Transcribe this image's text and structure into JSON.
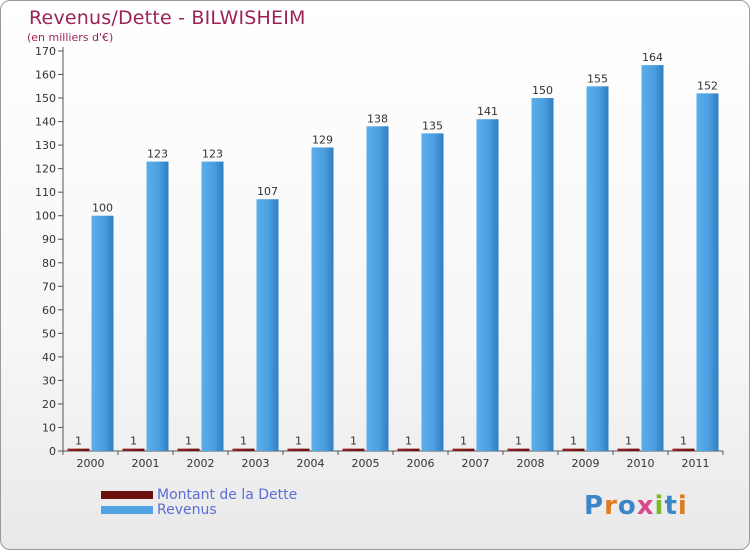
{
  "title": "Revenus/Dette - BILWISHEIM",
  "subtitle": "(en milliers d'€)",
  "legend": {
    "debt_label": "Montant de la Dette",
    "revenue_label": "Revenus"
  },
  "logo": {
    "text": "Proxiti"
  },
  "colors": {
    "title": "#9b2257",
    "revenue_bar": "#4fa3e3",
    "debt_bar": "#8b1a1a",
    "legend_text": "#5b6ed6"
  },
  "chart_data": {
    "type": "bar",
    "categories": [
      "2000",
      "2001",
      "2002",
      "2003",
      "2004",
      "2005",
      "2006",
      "2007",
      "2008",
      "2009",
      "2010",
      "2011"
    ],
    "series": [
      {
        "name": "Montant de la Dette",
        "values": [
          1,
          1,
          1,
          1,
          1,
          1,
          1,
          1,
          1,
          1,
          1,
          1
        ]
      },
      {
        "name": "Revenus",
        "values": [
          100,
          123,
          123,
          107,
          129,
          138,
          135,
          141,
          150,
          155,
          164,
          152
        ]
      }
    ],
    "ylim": [
      0,
      170
    ],
    "yticks": [
      0,
      10,
      20,
      30,
      40,
      50,
      60,
      70,
      80,
      90,
      100,
      110,
      120,
      130,
      140,
      150,
      160,
      170
    ],
    "grid": false,
    "legend_position": "bottom-left"
  }
}
